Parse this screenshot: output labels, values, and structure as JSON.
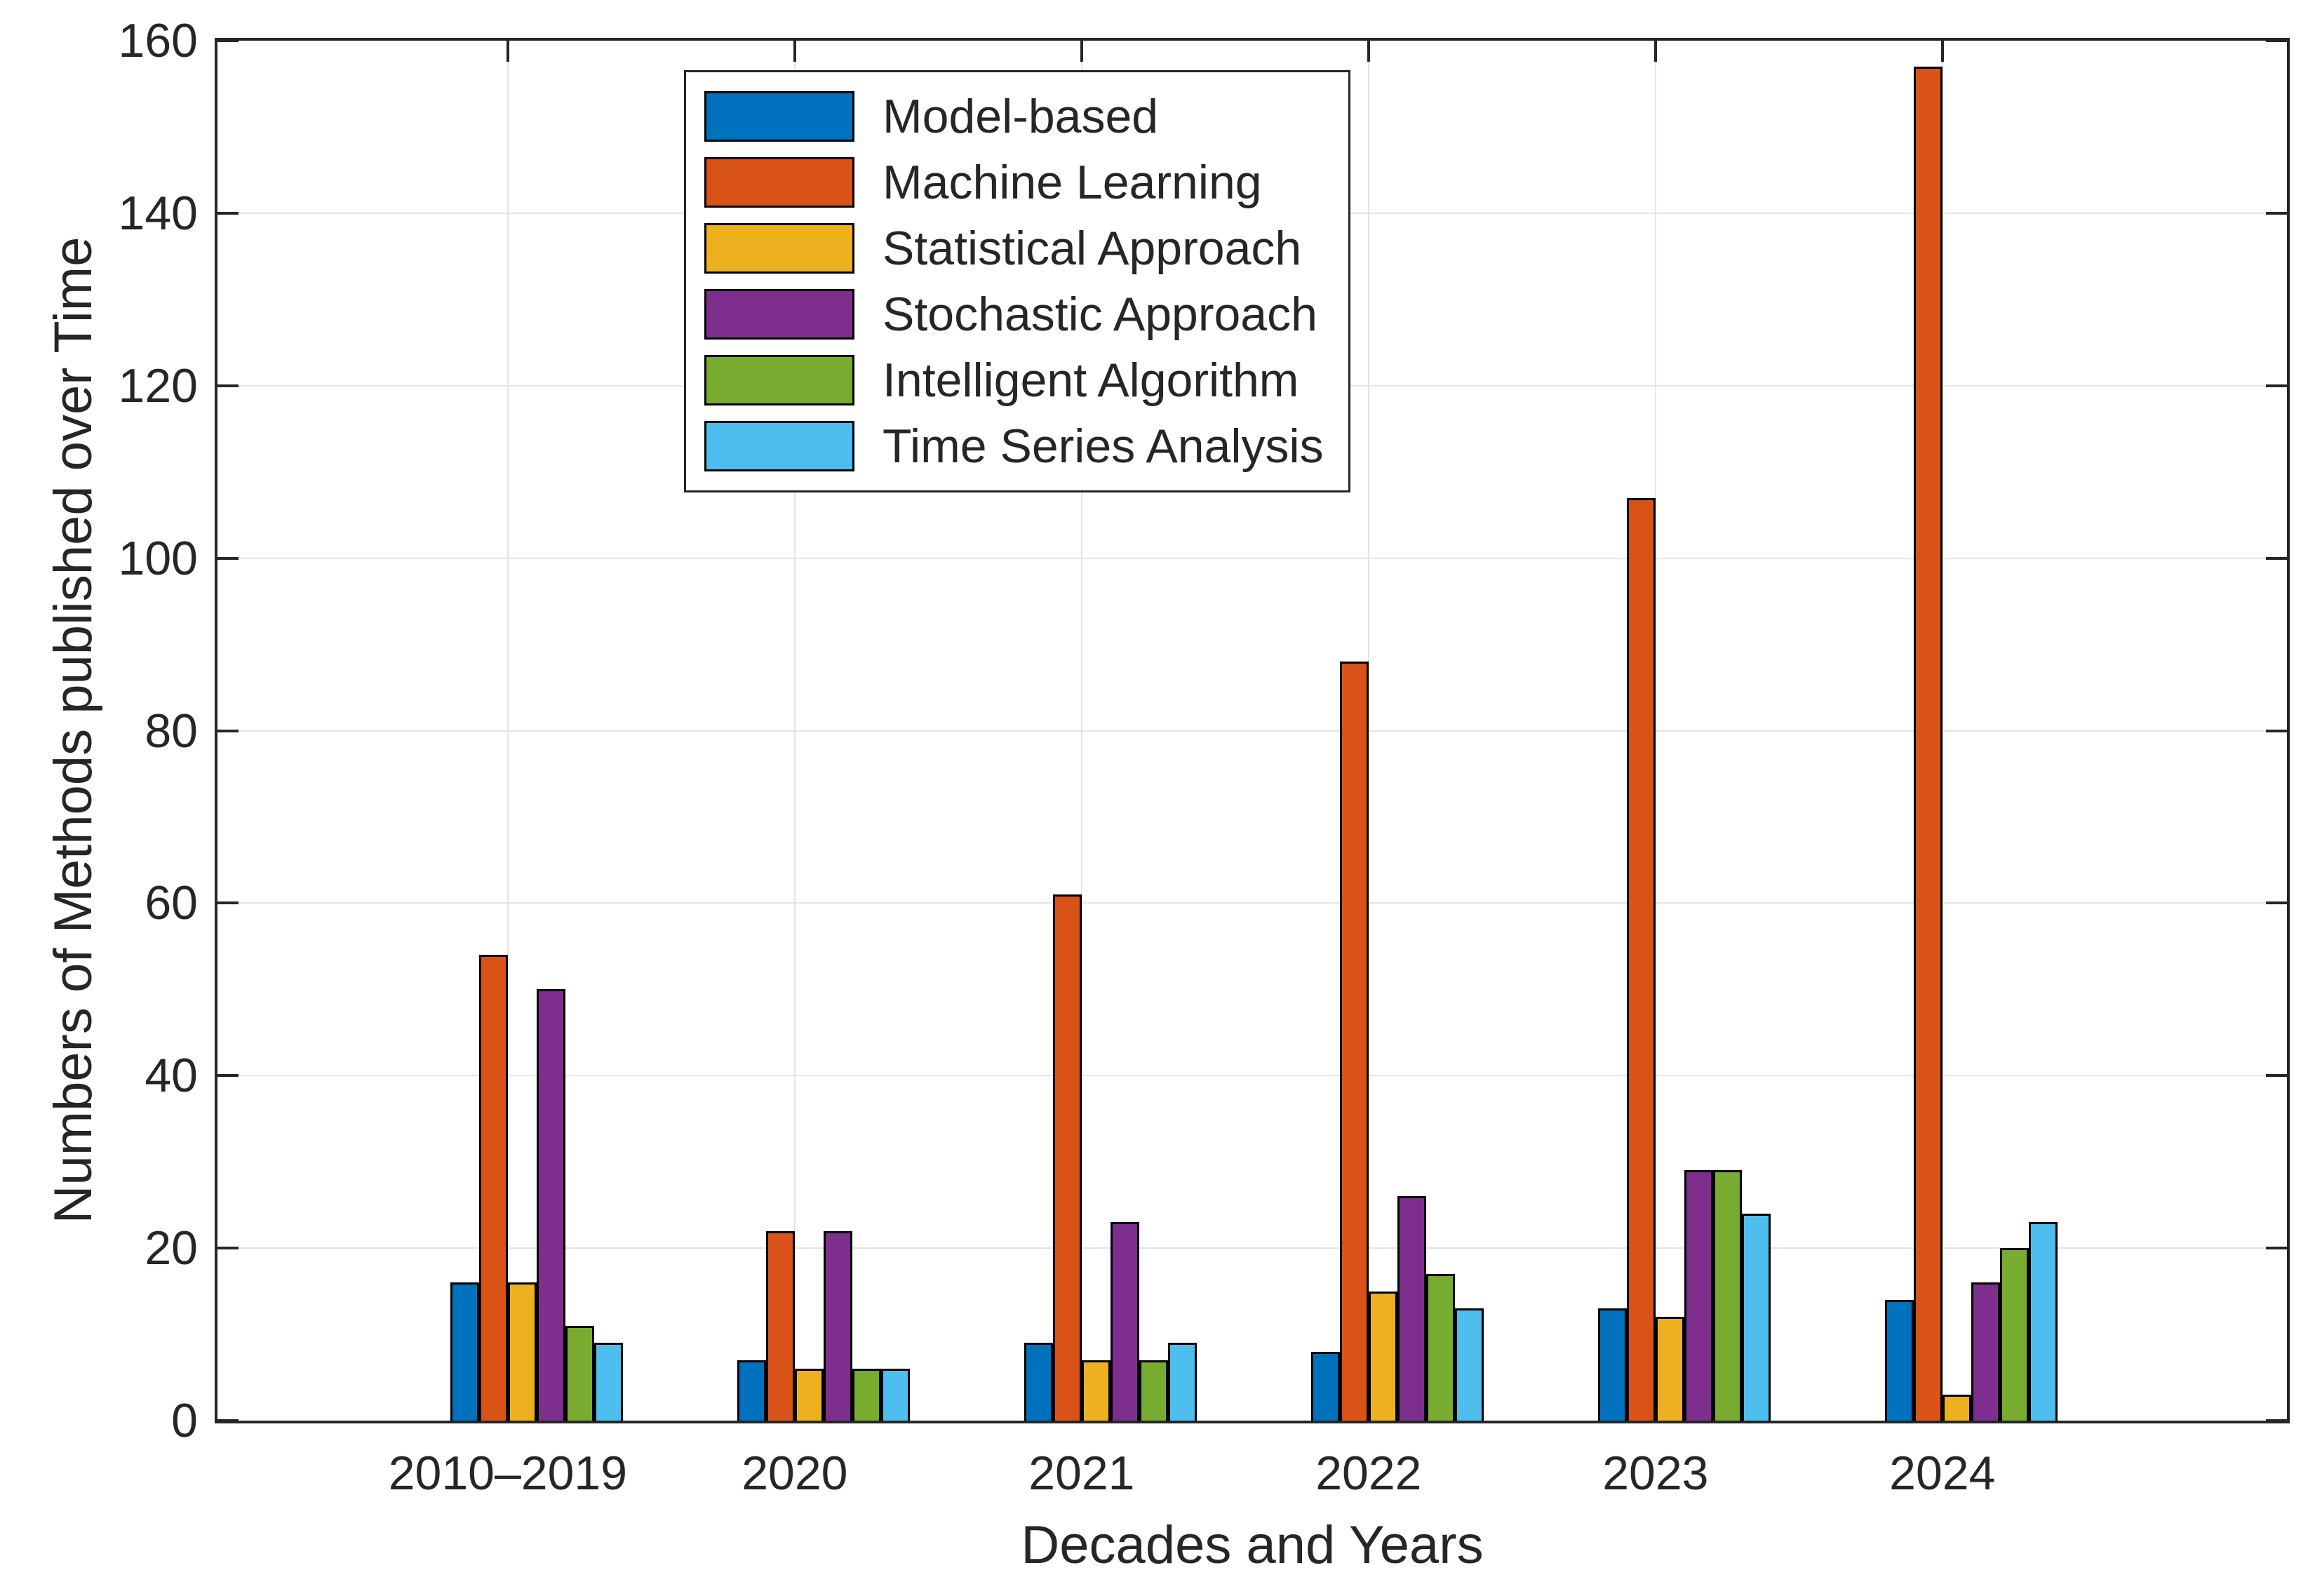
{
  "chart_data": {
    "type": "bar",
    "title": "",
    "xlabel": "Decades and Years",
    "ylabel": "Numbers of Methods published over Time",
    "categories": [
      "2010–2019",
      "2020",
      "2021",
      "2022",
      "2023",
      "2024"
    ],
    "series": [
      {
        "name": "Model-based",
        "color": "#0072BD",
        "values": [
          16,
          7,
          9,
          8,
          13,
          14
        ]
      },
      {
        "name": "Machine Learning",
        "color": "#D95319",
        "values": [
          54,
          22,
          61,
          88,
          107,
          157
        ]
      },
      {
        "name": "Statistical Approach",
        "color": "#EDB120",
        "values": [
          16,
          6,
          7,
          15,
          12,
          3
        ]
      },
      {
        "name": "Stochastic Approach",
        "color": "#7E2F8E",
        "values": [
          50,
          22,
          23,
          26,
          29,
          16
        ]
      },
      {
        "name": "Intelligent Algorithm",
        "color": "#77AC30",
        "values": [
          11,
          6,
          7,
          17,
          29,
          20
        ]
      },
      {
        "name": "Time Series Analysis",
        "color": "#4DBEEE",
        "values": [
          9,
          6,
          9,
          13,
          24,
          23
        ]
      }
    ],
    "ylim": [
      0,
      160
    ],
    "yticks": [
      0,
      20,
      40,
      60,
      80,
      100,
      120,
      140,
      160
    ],
    "grid": true,
    "legend_position": "top-left-inside",
    "bar_edge_color": "#000000",
    "axis_color": "#262626",
    "grid_color": "#e4e4e4",
    "background": "#ffffff"
  }
}
